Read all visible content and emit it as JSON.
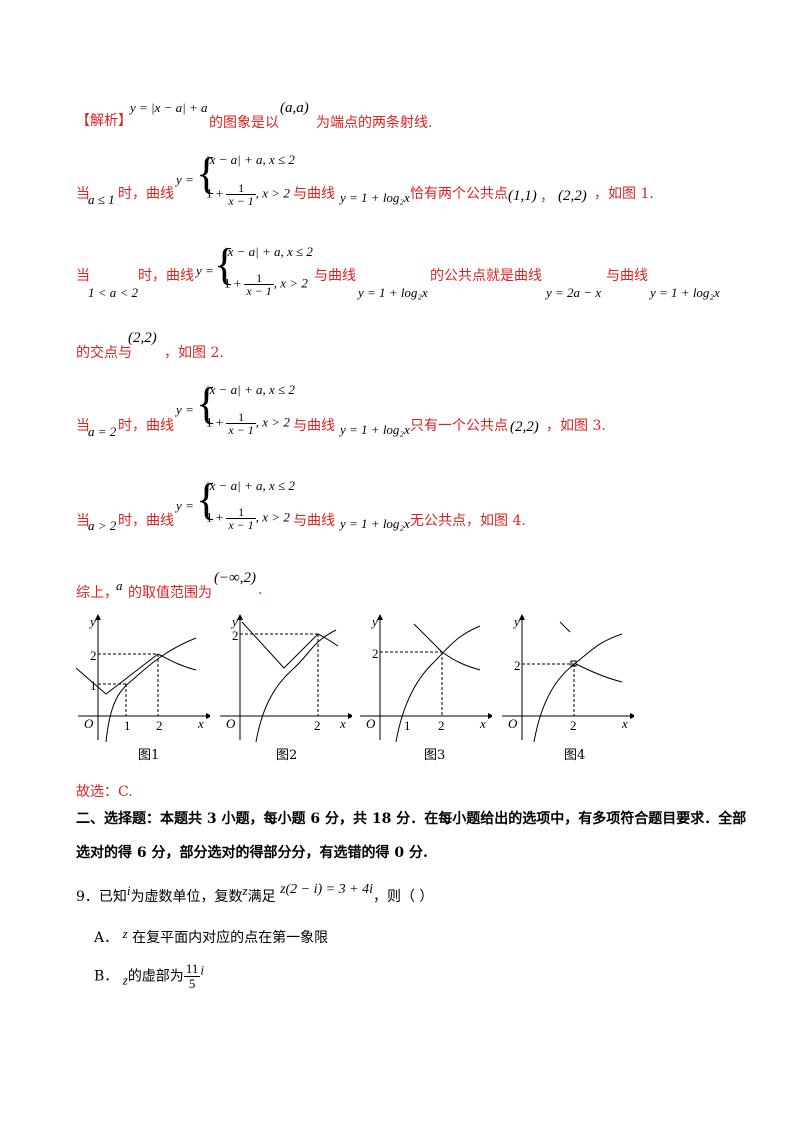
{
  "analysis": {
    "tag": "【解析】",
    "line1": {
      "expr": "y = |x − a| + a",
      "mid": "的图象是以",
      "point": "(a,a)",
      "end": "为端点的两条射线."
    },
    "piece": {
      "top": "|x − a| + a, x ≤ 2",
      "one": "1 +",
      "num": "1",
      "den": "x − 1",
      "cond": ", x > 2"
    },
    "case1": {
      "prefix": "当",
      "cond": "a ≤ 1",
      "curve": "时，曲线",
      "with": "与曲线",
      "log": "y = 1 + log₂x",
      "text": "恰有两个公共点",
      "p1": "(1,1)",
      "comma": "，",
      "p2": "(2,2)",
      "end": "，如图 1."
    },
    "case2": {
      "prefix": "当",
      "cond": "1 < a < 2",
      "curve": "时，曲线",
      "with": "与曲线",
      "log": "y = 1 + log₂x",
      "text": "的公共点就是曲线",
      "line": "y = 2a − x",
      "with2": "与曲线",
      "log2": "y = 1 + log₂x",
      "line2a": "的交点与",
      "point": "(2,2)",
      "end": "，如图 2."
    },
    "case3": {
      "prefix": "当",
      "cond": "a = 2",
      "curve": "时，曲线",
      "with": "与曲线",
      "log": "y = 1 + log₂x",
      "text": "只有一个公共点",
      "point": "(2,2)",
      "end": "，如图 3."
    },
    "case4": {
      "prefix": "当",
      "cond": "a > 2",
      "curve": "时，曲线",
      "with": "与曲线",
      "log": "y = 1 + log₂x",
      "text": "无公共点，如图 4."
    },
    "summary": {
      "prefix": "综上，",
      "var": "a",
      "text": "的取值范围为",
      "range": "(−∞,2)",
      "end": "."
    }
  },
  "figures": {
    "captions": [
      "图1",
      "图2",
      "图3",
      "图4"
    ],
    "axis_labels": {
      "y": "y",
      "x": "x",
      "origin": "O"
    },
    "ticks": {
      "one": "1",
      "two": "2"
    }
  },
  "answer": "故选：C.",
  "section": {
    "line1": "二、选择题：本题共 3 小题，每小题 6 分，共 18 分．在每小题给出的选项中，有多项符合题目要求．全部",
    "line2": "选对的得 6 分，部分选对的得部分分，有选错的得 0 分."
  },
  "question": {
    "stem": {
      "num": "9．已知",
      "i": "i",
      "t1": "为虚数单位，复数",
      "z": "z",
      "t2": "满足",
      "eq": "z(2 − i) = 3 + 4i",
      "t3": "，则（    ）"
    },
    "options": [
      {
        "label": "A．",
        "var": "z",
        "text": "在复平面内对应的点在第一象限"
      },
      {
        "label": "B．",
        "var": "z",
        "text": "的虚部为",
        "num": "11",
        "den": "5",
        "i": "i"
      }
    ]
  }
}
